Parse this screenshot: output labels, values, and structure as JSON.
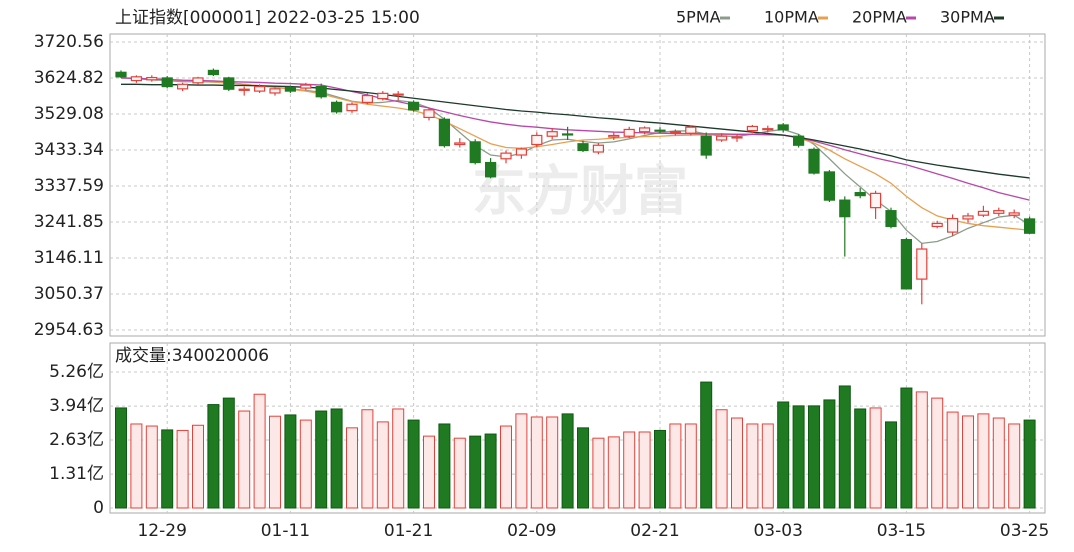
{
  "chart_data": [
    {
      "type": "candlestick",
      "title": "上证指数[000001] 2022-03-25 15:00",
      "watermark": "东方财富",
      "up_color": "#e5403a",
      "down_color": "#1f7a22",
      "open": [
        3640,
        3618,
        3620,
        3625,
        3596,
        3612,
        3645,
        3625,
        3592,
        3590,
        3585,
        3600,
        3598,
        3602,
        3560,
        3538,
        3560,
        3570,
        3580,
        3560,
        3520,
        3515,
        3448,
        3455,
        3400,
        3410,
        3420,
        3448,
        3470,
        3476,
        3450,
        3428,
        3468,
        3470,
        3482,
        3486,
        3480,
        3478,
        3470,
        3460,
        3466,
        3485,
        3488,
        3500,
        3470,
        3435,
        3375,
        3300,
        3320,
        3280,
        3272,
        3195,
        3090,
        3230,
        3215,
        3250,
        3260,
        3265,
        3260,
        3250
      ],
      "high": [
        3645,
        3632,
        3632,
        3630,
        3612,
        3628,
        3650,
        3628,
        3602,
        3608,
        3600,
        3605,
        3612,
        3610,
        3565,
        3560,
        3585,
        3590,
        3590,
        3565,
        3545,
        3520,
        3465,
        3462,
        3412,
        3432,
        3440,
        3480,
        3492,
        3495,
        3458,
        3452,
        3480,
        3495,
        3496,
        3494,
        3488,
        3498,
        3480,
        3478,
        3476,
        3500,
        3498,
        3505,
        3475,
        3440,
        3380,
        3310,
        3332,
        3325,
        3280,
        3200,
        3185,
        3245,
        3262,
        3266,
        3285,
        3280,
        3275,
        3256
      ],
      "low": [
        3625,
        3612,
        3615,
        3598,
        3590,
        3608,
        3630,
        3590,
        3578,
        3585,
        3578,
        3585,
        3592,
        3570,
        3530,
        3532,
        3555,
        3565,
        3565,
        3535,
        3512,
        3440,
        3440,
        3395,
        3358,
        3398,
        3410,
        3440,
        3462,
        3460,
        3428,
        3422,
        3460,
        3465,
        3475,
        3478,
        3472,
        3472,
        3410,
        3455,
        3455,
        3478,
        3480,
        3480,
        3440,
        3368,
        3295,
        3150,
        3305,
        3250,
        3225,
        3062,
        3023,
        3225,
        3205,
        3240,
        3255,
        3258,
        3252,
        3210
      ],
      "close": [
        3628,
        3628,
        3626,
        3602,
        3608,
        3625,
        3634,
        3595,
        3595,
        3602,
        3596,
        3590,
        3606,
        3575,
        3535,
        3555,
        3578,
        3584,
        3582,
        3540,
        3540,
        3445,
        3452,
        3400,
        3362,
        3425,
        3436,
        3472,
        3482,
        3474,
        3432,
        3446,
        3472,
        3488,
        3492,
        3484,
        3482,
        3494,
        3420,
        3470,
        3468,
        3496,
        3490,
        3487,
        3446,
        3372,
        3300,
        3256,
        3312,
        3318,
        3230,
        3064,
        3170,
        3238,
        3251,
        3258,
        3270,
        3272,
        3266,
        3212
      ],
      "series": [
        {
          "name": "5PMA",
          "color": "#8c9c8c",
          "values": [
            3625,
            3623,
            3620,
            3618,
            3615,
            3615,
            3614,
            3612,
            3608,
            3604,
            3600,
            3596,
            3592,
            3587,
            3575,
            3563,
            3558,
            3560,
            3565,
            3560,
            3545,
            3515,
            3480,
            3445,
            3420,
            3415,
            3425,
            3445,
            3460,
            3462,
            3456,
            3452,
            3455,
            3463,
            3472,
            3480,
            3484,
            3484,
            3476,
            3470,
            3470,
            3475,
            3483,
            3488,
            3475,
            3448,
            3410,
            3370,
            3335,
            3300,
            3270,
            3220,
            3185,
            3190,
            3205,
            3225,
            3240,
            3255,
            3260,
            3234
          ]
        },
        {
          "name": "10PMA",
          "color": "#e8a050",
          "values": [
            3625,
            3624,
            3622,
            3620,
            3618,
            3616,
            3614,
            3612,
            3608,
            3604,
            3600,
            3595,
            3590,
            3583,
            3572,
            3562,
            3555,
            3550,
            3545,
            3538,
            3527,
            3510,
            3490,
            3470,
            3450,
            3440,
            3438,
            3442,
            3448,
            3455,
            3460,
            3462,
            3465,
            3467,
            3469,
            3470,
            3472,
            3473,
            3474,
            3474,
            3475,
            3475,
            3474,
            3473,
            3465,
            3452,
            3433,
            3410,
            3390,
            3370,
            3345,
            3310,
            3280,
            3258,
            3247,
            3238,
            3232,
            3228,
            3224,
            3220
          ]
        },
        {
          "name": "20PMA",
          "color": "#b848a8",
          "values": [
            3625,
            3624,
            3622,
            3621,
            3619,
            3618,
            3617,
            3615,
            3614,
            3613,
            3611,
            3610,
            3608,
            3606,
            3598,
            3589,
            3580,
            3570,
            3562,
            3553,
            3545,
            3535,
            3525,
            3516,
            3508,
            3502,
            3497,
            3494,
            3490,
            3487,
            3485,
            3483,
            3481,
            3480,
            3479,
            3478,
            3477,
            3477,
            3476,
            3476,
            3475,
            3475,
            3474,
            3473,
            3466,
            3457,
            3446,
            3434,
            3423,
            3412,
            3403,
            3394,
            3382,
            3370,
            3358,
            3345,
            3333,
            3320,
            3310,
            3300
          ]
        },
        {
          "name": "30PMA",
          "color": "#1d3a2a",
          "values": [
            3608,
            3608,
            3607,
            3607,
            3607,
            3606,
            3606,
            3605,
            3605,
            3604,
            3603,
            3602,
            3600,
            3598,
            3594,
            3590,
            3586,
            3581,
            3576,
            3571,
            3566,
            3561,
            3556,
            3551,
            3546,
            3541,
            3537,
            3534,
            3530,
            3527,
            3523,
            3519,
            3516,
            3512,
            3508,
            3505,
            3501,
            3497,
            3493,
            3489,
            3485,
            3481,
            3477,
            3473,
            3467,
            3460,
            3452,
            3444,
            3436,
            3427,
            3418,
            3407,
            3400,
            3393,
            3387,
            3381,
            3375,
            3369,
            3364,
            3359
          ]
        }
      ],
      "ylim": [
        2954.63,
        3720.56
      ],
      "yticks": [
        2954.63,
        3050.37,
        3146.11,
        3241.85,
        3337.59,
        3433.34,
        3529.08,
        3624.82,
        3720.56
      ],
      "grid": true
    },
    {
      "type": "bar",
      "title": "成交量:340020006",
      "categories": [
        null,
        null,
        null,
        "12-29",
        null,
        null,
        null,
        null,
        null,
        null,
        null,
        "01-11",
        null,
        null,
        null,
        null,
        null,
        null,
        null,
        "01-21",
        null,
        null,
        null,
        null,
        null,
        null,
        null,
        "02-09",
        null,
        null,
        null,
        null,
        null,
        null,
        null,
        "02-21",
        null,
        null,
        null,
        null,
        null,
        null,
        null,
        "03-03",
        null,
        null,
        null,
        null,
        null,
        null,
        null,
        "03-15",
        null,
        null,
        null,
        null,
        null,
        null,
        null,
        "03-25"
      ],
      "values": [
        3.87,
        3.25,
        3.17,
        3.02,
        3.0,
        3.2,
        4.0,
        4.25,
        3.75,
        4.4,
        3.55,
        3.6,
        3.4,
        3.75,
        3.83,
        3.1,
        3.8,
        3.33,
        3.83,
        3.4,
        2.78,
        3.25,
        2.7,
        2.78,
        2.86,
        3.17,
        3.64,
        3.52,
        3.52,
        3.64,
        3.1,
        2.7,
        2.75,
        2.94,
        2.94,
        3.0,
        3.25,
        3.25,
        4.87,
        3.8,
        3.48,
        3.25,
        3.25,
        4.1,
        3.95,
        3.95,
        4.18,
        4.72,
        3.83,
        3.87,
        3.33,
        4.64,
        4.49,
        4.25,
        3.71,
        3.56,
        3.64,
        3.48,
        3.25,
        3.4
      ],
      "ylim": [
        0,
        5.26
      ],
      "yticks": [
        0,
        {
          "value": 1.31,
          "label": "1.31亿"
        },
        {
          "value": 2.63,
          "label": "2.63亿"
        },
        {
          "value": 3.94,
          "label": "3.94亿"
        },
        {
          "value": 5.26,
          "label": "5.26亿"
        }
      ],
      "grid": true
    }
  ]
}
